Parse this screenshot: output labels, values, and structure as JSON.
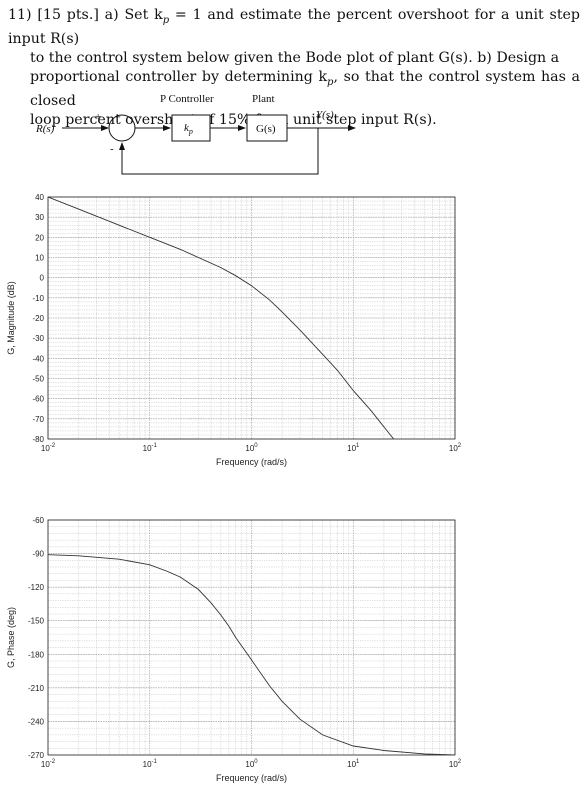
{
  "problem": {
    "line1": "11) [15 pts.] a) Set k",
    "line1_sub": "p",
    "line1_rest": " = 1 and estimate the percent overshoot for a unit step input R(s)",
    "line2": "to the control system below given the Bode plot of plant G(s). b) Design a",
    "line3_a": "proportional controller by determining k",
    "line3_sub": "p",
    "line3_b": ", so that the control system has a closed",
    "line4": "loop percent overshoot of 15% for a unit step input R(s)."
  },
  "diagram": {
    "controller_label": "P Controller",
    "plant_label": "Plant",
    "input_label": "R(s)",
    "output_label": "Y(s)",
    "plus_sign": "+",
    "minus_sign": "-",
    "controller_block": "k",
    "controller_block_sub": "p",
    "plant_block": "G(s)"
  },
  "chart_data": [
    {
      "type": "line",
      "xscale": "log",
      "xlim": [
        0.01,
        100
      ],
      "ylim": [
        -80,
        40
      ],
      "xlabel": "Frequency (rad/s)",
      "ylabel": "G, Magnitude (dB)",
      "xticks": [
        {
          "base": "10",
          "exp": "-2"
        },
        {
          "base": "10",
          "exp": "-1"
        },
        {
          "base": "10",
          "exp": "0"
        },
        {
          "base": "10",
          "exp": "1"
        },
        {
          "base": "10",
          "exp": "2"
        }
      ],
      "yticks": [
        "40",
        "30",
        "20",
        "10",
        "0",
        "-10",
        "-20",
        "-30",
        "-40",
        "-50",
        "-60",
        "-70",
        "-80"
      ],
      "grid": true,
      "x": [
        0.01,
        0.02,
        0.05,
        0.1,
        0.2,
        0.5,
        0.7,
        1,
        1.5,
        2,
        3,
        5,
        7,
        10,
        15,
        20,
        25
      ],
      "y": [
        40,
        34,
        26,
        20,
        14,
        5,
        1,
        -4,
        -11,
        -17,
        -26,
        -38,
        -46,
        -56,
        -66,
        -74,
        -80
      ]
    },
    {
      "type": "line",
      "xscale": "log",
      "xlim": [
        0.01,
        100
      ],
      "ylim": [
        -270,
        -60
      ],
      "xlabel": "Frequency (rad/s)",
      "ylabel": "G, Phase (deg)",
      "xticks": [
        {
          "base": "10",
          "exp": "-2"
        },
        {
          "base": "10",
          "exp": "-1"
        },
        {
          "base": "10",
          "exp": "0"
        },
        {
          "base": "10",
          "exp": "1"
        },
        {
          "base": "10",
          "exp": "2"
        }
      ],
      "yticks": [
        "-60",
        "-90",
        "-120",
        "-150",
        "-180",
        "-210",
        "-240",
        "-270"
      ],
      "grid": true,
      "x": [
        0.01,
        0.02,
        0.05,
        0.1,
        0.15,
        0.2,
        0.3,
        0.4,
        0.5,
        0.6,
        0.7,
        1,
        1.5,
        2,
        3,
        5,
        10,
        20,
        50,
        100
      ],
      "y": [
        -91,
        -92,
        -95,
        -100,
        -106,
        -111,
        -122,
        -134,
        -145,
        -155,
        -165,
        -185,
        -208,
        -222,
        -238,
        -252,
        -262,
        -266,
        -269,
        -270
      ]
    }
  ]
}
